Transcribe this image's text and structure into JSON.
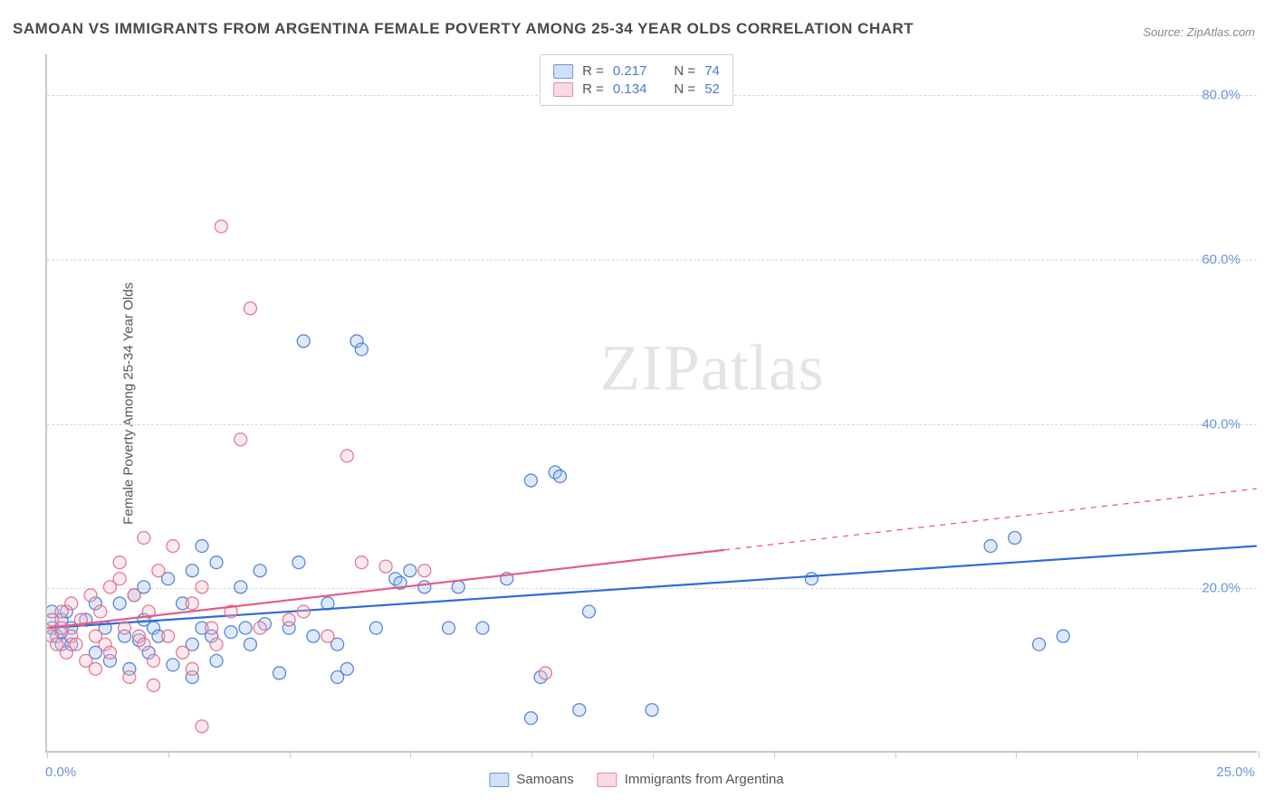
{
  "title": "SAMOAN VS IMMIGRANTS FROM ARGENTINA FEMALE POVERTY AMONG 25-34 YEAR OLDS CORRELATION CHART",
  "source": "Source: ZipAtlas.com",
  "watermark": "ZIPatlas",
  "y_axis_label": "Female Poverty Among 25-34 Year Olds",
  "chart": {
    "type": "scatter",
    "background_color": "#ffffff",
    "grid_color": "#d8d8d8",
    "axis_color": "#c9c9c9",
    "xlim": [
      0,
      25
    ],
    "ylim": [
      0,
      85
    ],
    "x_ticks": [
      0,
      2.5,
      5,
      7.5,
      10,
      12.5,
      15,
      17.5,
      20,
      22.5,
      25
    ],
    "x_tick_labels": {
      "0": "0.0%",
      "25": "25.0%"
    },
    "y_gridlines": [
      20,
      40,
      60,
      80
    ],
    "y_tick_labels": {
      "20": "20.0%",
      "40": "40.0%",
      "60": "60.0%",
      "80": "80.0%"
    },
    "marker_radius": 7,
    "line_width": 2.2,
    "title_fontsize": 17,
    "tick_fontsize": 15,
    "tick_label_color": "#6b95d8"
  },
  "legend_top": {
    "rows": [
      {
        "swatch_fill": "#cfe0f7",
        "swatch_stroke": "#6b95d8",
        "r_label": "R =",
        "r_value": "0.217",
        "n_label": "N =",
        "n_value": "74"
      },
      {
        "swatch_fill": "#f9d9e2",
        "swatch_stroke": "#e38aa5",
        "r_label": "R =",
        "r_value": "0.134",
        "n_label": "N =",
        "n_value": "52"
      }
    ]
  },
  "legend_bottom": {
    "items": [
      {
        "label": "Samoans",
        "swatch_fill": "#cfe0f7",
        "swatch_stroke": "#6b95d8"
      },
      {
        "label": "Immigrants from Argentina",
        "swatch_fill": "#f9d9e2",
        "swatch_stroke": "#e38aa5"
      }
    ]
  },
  "series": [
    {
      "name": "Samoans",
      "color_fill": "#9ec1ef",
      "color_stroke": "#4a7bd0",
      "trend": {
        "x1": 0,
        "y1": 15,
        "x2": 25,
        "y2": 25,
        "solid_until_x": 25,
        "color": "#2f6bd6"
      },
      "points": [
        [
          0.1,
          15
        ],
        [
          0.1,
          17
        ],
        [
          0.2,
          14
        ],
        [
          0.3,
          16
        ],
        [
          0.3,
          13
        ],
        [
          0.4,
          17
        ],
        [
          0.5,
          15
        ],
        [
          0.5,
          13
        ],
        [
          0.8,
          16
        ],
        [
          1.0,
          18
        ],
        [
          1.0,
          12
        ],
        [
          1.2,
          15
        ],
        [
          1.3,
          11
        ],
        [
          1.5,
          18
        ],
        [
          1.6,
          14
        ],
        [
          1.7,
          10
        ],
        [
          1.8,
          19
        ],
        [
          1.9,
          13.5
        ],
        [
          2.0,
          16
        ],
        [
          2.0,
          20
        ],
        [
          2.1,
          12
        ],
        [
          2.2,
          15
        ],
        [
          2.3,
          14
        ],
        [
          2.5,
          21
        ],
        [
          2.6,
          10.5
        ],
        [
          2.8,
          18
        ],
        [
          3.0,
          22
        ],
        [
          3.0,
          13
        ],
        [
          3.0,
          9
        ],
        [
          3.2,
          15
        ],
        [
          3.2,
          25
        ],
        [
          3.4,
          14
        ],
        [
          3.5,
          23
        ],
        [
          3.5,
          11
        ],
        [
          3.8,
          14.5
        ],
        [
          4.0,
          20
        ],
        [
          4.1,
          15
        ],
        [
          4.2,
          13
        ],
        [
          4.4,
          22
        ],
        [
          4.5,
          15.5
        ],
        [
          4.8,
          9.5
        ],
        [
          5.0,
          15
        ],
        [
          5.2,
          23
        ],
        [
          5.3,
          50
        ],
        [
          5.5,
          14
        ],
        [
          5.8,
          18
        ],
        [
          6.0,
          13
        ],
        [
          6.0,
          9
        ],
        [
          6.2,
          10
        ],
        [
          6.4,
          50
        ],
        [
          6.5,
          49
        ],
        [
          6.8,
          15
        ],
        [
          7.2,
          21
        ],
        [
          7.3,
          20.5
        ],
        [
          7.5,
          22
        ],
        [
          7.8,
          20
        ],
        [
          8.3,
          15
        ],
        [
          8.5,
          20
        ],
        [
          9.0,
          15
        ],
        [
          9.5,
          21
        ],
        [
          10.0,
          33
        ],
        [
          10.0,
          4
        ],
        [
          10.5,
          34
        ],
        [
          10.2,
          9
        ],
        [
          10.6,
          33.5
        ],
        [
          11.0,
          5
        ],
        [
          11.2,
          17
        ],
        [
          12.5,
          5
        ],
        [
          15.8,
          21
        ],
        [
          19.5,
          25
        ],
        [
          20.0,
          26
        ],
        [
          20.5,
          13
        ],
        [
          21.0,
          14
        ],
        [
          0.3,
          14.5
        ]
      ]
    },
    {
      "name": "Immigrants from Argentina",
      "color_fill": "#f4c0cf",
      "color_stroke": "#e06d8f",
      "trend": {
        "x1": 0,
        "y1": 15,
        "x2": 25,
        "y2": 32,
        "solid_until_x": 14,
        "color": "#e75a87"
      },
      "points": [
        [
          0.1,
          14
        ],
        [
          0.1,
          16
        ],
        [
          0.2,
          13
        ],
        [
          0.3,
          15
        ],
        [
          0.3,
          17
        ],
        [
          0.4,
          12
        ],
        [
          0.5,
          14
        ],
        [
          0.5,
          18
        ],
        [
          0.6,
          13
        ],
        [
          0.7,
          16
        ],
        [
          0.8,
          11
        ],
        [
          0.9,
          19
        ],
        [
          1.0,
          14
        ],
        [
          1.0,
          10
        ],
        [
          1.1,
          17
        ],
        [
          1.2,
          13
        ],
        [
          1.3,
          20
        ],
        [
          1.3,
          12
        ],
        [
          1.5,
          21
        ],
        [
          1.5,
          23
        ],
        [
          1.6,
          15
        ],
        [
          1.7,
          9
        ],
        [
          1.8,
          19
        ],
        [
          1.9,
          14
        ],
        [
          2.0,
          26
        ],
        [
          2.0,
          13
        ],
        [
          2.1,
          17
        ],
        [
          2.2,
          11
        ],
        [
          2.3,
          22
        ],
        [
          2.5,
          14
        ],
        [
          2.6,
          25
        ],
        [
          2.8,
          12
        ],
        [
          3.0,
          18
        ],
        [
          3.0,
          10
        ],
        [
          3.2,
          20
        ],
        [
          3.2,
          3
        ],
        [
          3.4,
          15
        ],
        [
          3.5,
          13
        ],
        [
          3.6,
          64
        ],
        [
          3.8,
          17
        ],
        [
          4.0,
          38
        ],
        [
          4.2,
          54
        ],
        [
          4.4,
          15
        ],
        [
          5.0,
          16
        ],
        [
          5.3,
          17
        ],
        [
          5.8,
          14
        ],
        [
          6.2,
          36
        ],
        [
          6.5,
          23
        ],
        [
          7.0,
          22.5
        ],
        [
          7.8,
          22
        ],
        [
          10.3,
          9.5
        ],
        [
          2.2,
          8
        ]
      ]
    }
  ]
}
